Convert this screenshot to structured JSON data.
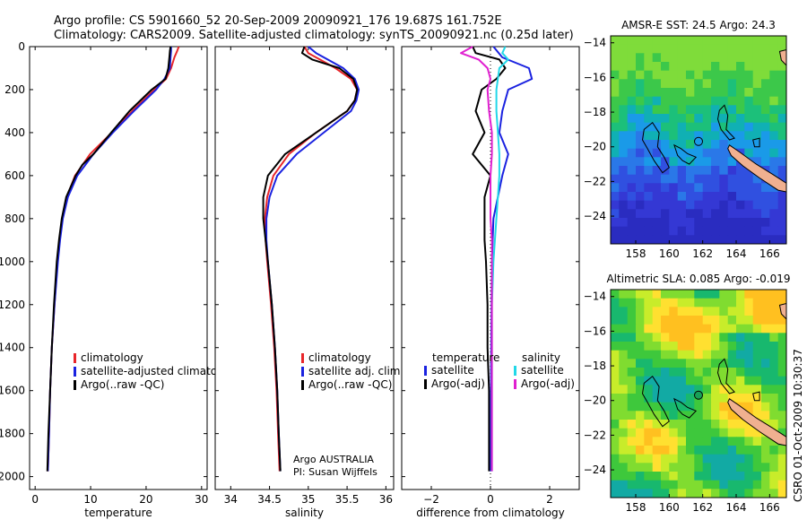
{
  "title_line1": "Argo profile: CS 5901660_52 20-Sep-2009 20090921_176 19.687S 161.752E",
  "title_line2": "Climatology: CARS2009. Satellite-adjusted climatology: synTS_20090921.nc (0.25d later)",
  "side_stamp": "CSRO 01-Oct-2009 10:30:37",
  "colors": {
    "red": "#e8262a",
    "blue": "#1a22e0",
    "black": "#000000",
    "cyan": "#22d8e8",
    "magenta": "#e020d0"
  },
  "chart_data": [
    {
      "id": "temperature",
      "type": "line",
      "xlabel": "temperature",
      "xlim": [
        -1,
        31
      ],
      "ylim": [
        0,
        2060
      ],
      "xticks": [
        0,
        10,
        20,
        30
      ],
      "yticks": [
        0,
        200,
        400,
        600,
        800,
        1000,
        1200,
        1400,
        1600,
        1800,
        2000
      ],
      "ytick_labels": [
        "0",
        "200",
        "400",
        "600",
        "800",
        "1000",
        "1200",
        "1400",
        "1600",
        "1800",
        "2000"
      ],
      "legend": [
        "climatology",
        "satellite-adjusted climatology",
        "Argo(..raw -QC)"
      ],
      "series": [
        {
          "name": "climatology",
          "color": "red",
          "depth": [
            0,
            20,
            50,
            100,
            150,
            200,
            300,
            400,
            500,
            600,
            700,
            800,
            900,
            1000,
            1200,
            1400,
            1600,
            1800,
            1975
          ],
          "values": [
            25.9,
            25.6,
            25.1,
            24.5,
            23.6,
            21.5,
            17.5,
            13.8,
            9.9,
            7.2,
            5.7,
            4.9,
            4.4,
            4.0,
            3.5,
            3.0,
            2.7,
            2.5,
            2.3
          ]
        },
        {
          "name": "satellite-adjusted climatology",
          "color": "blue",
          "depth": [
            0,
            20,
            50,
            100,
            150,
            200,
            300,
            400,
            500,
            600,
            700,
            800,
            900,
            1000,
            1200,
            1400,
            1600,
            1800,
            1975
          ],
          "values": [
            24.5,
            24.5,
            24.4,
            24.3,
            23.3,
            21.8,
            17.8,
            14.0,
            10.5,
            7.6,
            5.9,
            5.0,
            4.5,
            4.1,
            3.5,
            3.0,
            2.7,
            2.5,
            2.3
          ]
        },
        {
          "name": "Argo(..raw -QC)",
          "color": "black",
          "depth": [
            0,
            20,
            50,
            100,
            150,
            200,
            300,
            400,
            500,
            550,
            600,
            700,
            800,
            900,
            1000,
            1200,
            1400,
            1600,
            1800,
            1975
          ],
          "values": [
            24.4,
            24.3,
            24.2,
            24.0,
            23.5,
            21.0,
            17.0,
            13.7,
            10.5,
            8.5,
            7.3,
            5.6,
            4.8,
            4.3,
            3.9,
            3.4,
            3.0,
            2.7,
            2.4,
            2.2
          ]
        }
      ]
    },
    {
      "id": "salinity",
      "type": "line",
      "xlabel": "salinity",
      "xlim": [
        33.8,
        36.1
      ],
      "ylim": [
        0,
        2060
      ],
      "xticks": [
        34,
        34.5,
        35,
        35.5,
        36
      ],
      "xtick_labels": [
        "34",
        "34.5",
        "35",
        "35.5",
        "36"
      ],
      "legend": [
        "climatology",
        "satellite adj. clim.",
        "Argo(..raw -QC)"
      ],
      "annotation": [
        "Argo AUSTRALIA",
        "PI: Susan Wijffels"
      ],
      "series": [
        {
          "name": "climatology",
          "color": "red",
          "depth": [
            0,
            30,
            60,
            100,
            150,
            200,
            250,
            300,
            400,
            500,
            600,
            700,
            800,
            900,
            1000,
            1200,
            1400,
            1600,
            1800,
            1975
          ],
          "values": [
            34.95,
            35.0,
            35.15,
            35.35,
            35.55,
            35.63,
            35.6,
            35.5,
            35.1,
            34.75,
            34.55,
            34.47,
            34.44,
            34.45,
            34.47,
            34.52,
            34.56,
            34.59,
            34.61,
            34.63
          ]
        },
        {
          "name": "satellite adj. clim.",
          "color": "blue",
          "depth": [
            0,
            30,
            60,
            100,
            150,
            200,
            250,
            300,
            400,
            500,
            600,
            700,
            800,
            900,
            1000,
            1200,
            1400,
            1600,
            1800,
            1975
          ],
          "values": [
            35.0,
            35.1,
            35.25,
            35.45,
            35.6,
            35.65,
            35.62,
            35.55,
            35.2,
            34.85,
            34.6,
            34.5,
            34.46,
            34.46,
            34.48,
            34.53,
            34.57,
            34.6,
            34.62,
            34.64
          ]
        },
        {
          "name": "Argo(..raw -QC)",
          "color": "black",
          "depth": [
            0,
            30,
            60,
            100,
            150,
            200,
            250,
            300,
            400,
            500,
            600,
            700,
            800,
            900,
            1000,
            1200,
            1400,
            1600,
            1800,
            1975
          ],
          "values": [
            34.95,
            34.92,
            35.05,
            35.4,
            35.58,
            35.63,
            35.6,
            35.5,
            35.1,
            34.7,
            34.48,
            34.42,
            34.42,
            34.45,
            34.48,
            34.53,
            34.57,
            34.6,
            34.62,
            34.64
          ]
        }
      ]
    },
    {
      "id": "difference",
      "type": "line",
      "xlabel": "difference from climatology",
      "xlim": [
        -3,
        3
      ],
      "ylim": [
        0,
        2060
      ],
      "xticks": [
        -2,
        0,
        2
      ],
      "legend_titles": [
        "temperature",
        "salinity"
      ],
      "legend": [
        "satellite",
        "Argo(-adj)",
        "satellite",
        "Argo(-adj)"
      ],
      "series": [
        {
          "name": "temperature satellite",
          "color": "blue",
          "depth": [
            0,
            50,
            100,
            150,
            200,
            300,
            400,
            500,
            600,
            800,
            1000,
            1500,
            1975
          ],
          "values": [
            0.1,
            0.4,
            1.3,
            1.4,
            0.6,
            0.4,
            0.3,
            0.6,
            0.4,
            0.1,
            0.05,
            0.02,
            0.0
          ]
        },
        {
          "name": "temperature Argo(-adj)",
          "color": "black",
          "depth": [
            0,
            30,
            60,
            100,
            150,
            200,
            300,
            400,
            500,
            550,
            600,
            700,
            800,
            900,
            1000,
            1200,
            1400,
            1600,
            1800,
            1975
          ],
          "values": [
            -0.6,
            -0.5,
            0.3,
            0.5,
            0.2,
            -0.3,
            -0.5,
            -0.2,
            -0.6,
            -0.3,
            0.0,
            -0.2,
            -0.2,
            -0.2,
            -0.15,
            -0.1,
            -0.1,
            -0.05,
            -0.05,
            -0.05
          ]
        },
        {
          "name": "salinity satellite",
          "color": "cyan",
          "depth": [
            0,
            30,
            60,
            100,
            200,
            300,
            400,
            500,
            600,
            800,
            1000,
            1200,
            1500,
            1975
          ],
          "values": [
            0.5,
            0.4,
            0.6,
            0.3,
            0.2,
            0.2,
            0.25,
            0.3,
            0.3,
            0.2,
            0.1,
            0.05,
            0.05,
            0.05
          ]
        },
        {
          "name": "salinity Argo(-adj)",
          "color": "magenta",
          "depth": [
            0,
            30,
            60,
            100,
            150,
            200,
            300,
            400,
            500,
            600,
            700,
            800,
            900,
            1000,
            1200,
            1400,
            1600,
            1800,
            1975
          ],
          "values": [
            -0.6,
            -1.0,
            -0.4,
            -0.1,
            0.0,
            -0.1,
            -0.05,
            0.05,
            0.05,
            0.0,
            0.0,
            0.0,
            0.05,
            0.05,
            0.05,
            0.05,
            0.05,
            0.05,
            0.05
          ]
        }
      ]
    },
    {
      "id": "sst_map",
      "type": "heatmap",
      "title": "AMSR-E SST: 24.5 Argo: 24.3",
      "xlim": [
        156.5,
        167
      ],
      "ylim": [
        -25.6,
        -13.6
      ],
      "xticks": [
        158,
        160,
        162,
        164,
        166
      ],
      "yticks": [
        -14,
        -16,
        -18,
        -20,
        -22,
        -24
      ],
      "marker": {
        "lon": 161.75,
        "lat": -19.69,
        "filled": false
      }
    },
    {
      "id": "sla_map",
      "type": "heatmap",
      "title": "Altimetric SLA: 0.085 Argo: -0.019",
      "xlim": [
        156.5,
        167
      ],
      "ylim": [
        -25.6,
        -13.6
      ],
      "xticks": [
        158,
        160,
        162,
        164,
        166
      ],
      "yticks": [
        -14,
        -16,
        -18,
        -20,
        -22,
        -24
      ],
      "marker": {
        "lon": 161.75,
        "lat": -19.69,
        "filled": true
      }
    }
  ]
}
